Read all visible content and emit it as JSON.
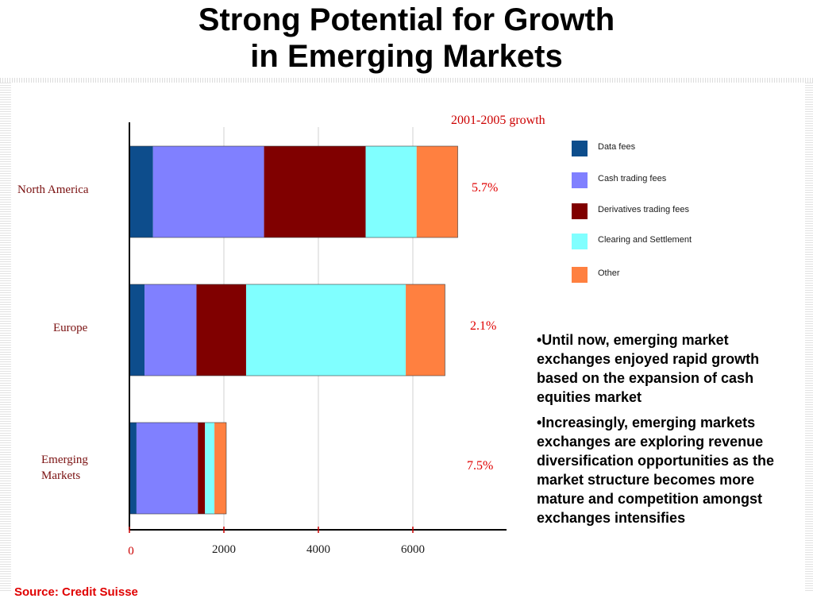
{
  "title_line1": "Strong Potential for Growth",
  "title_line2": "in Emerging Markets",
  "growth_heading": "2001-2005 growth",
  "chart_data": {
    "type": "bar",
    "orientation": "horizontal",
    "stacked": true,
    "categories": [
      "North America",
      "Europe",
      "Emerging Markets"
    ],
    "series": [
      {
        "name": "Data fees",
        "color": "#0d4d8c",
        "values": [
          500,
          320,
          150
        ]
      },
      {
        "name": "Cash trading fees",
        "color": "#8080ff",
        "values": [
          2350,
          1100,
          1300
        ]
      },
      {
        "name": "Derivatives trading fees",
        "color": "#800000",
        "values": [
          2150,
          1050,
          150
        ]
      },
      {
        "name": "Clearing and Settlement",
        "color": "#80ffff",
        "values": [
          1080,
          3380,
          200
        ]
      },
      {
        "name": "Other",
        "color": "#ff8040",
        "values": [
          870,
          830,
          250
        ]
      }
    ],
    "growth": [
      "5.7%",
      "2.1%",
      "7.5%"
    ],
    "xticks": [
      "0",
      "2000",
      "4000",
      "6000"
    ],
    "xlim": [
      0,
      8000
    ],
    "grid": "vertical",
    "legend_position": "right"
  },
  "legend": [
    {
      "label": "Data fees",
      "color": "#0d4d8c"
    },
    {
      "label": "Cash trading fees",
      "color": "#8080ff"
    },
    {
      "label": "Derivatives trading fees",
      "color": "#800000"
    },
    {
      "label": "Clearing and Settlement",
      "color": "#80ffff"
    },
    {
      "label": "Other",
      "color": "#ff8040"
    }
  ],
  "bullets": [
    "•Until now, emerging market exchanges enjoyed rapid growth based on the expansion of cash equities market",
    "•Increasingly, emerging markets exchanges are exploring revenue diversification opportunities as the market structure becomes more mature and competition amongst exchanges intensifies"
  ],
  "source": "Source: Credit Suisse"
}
